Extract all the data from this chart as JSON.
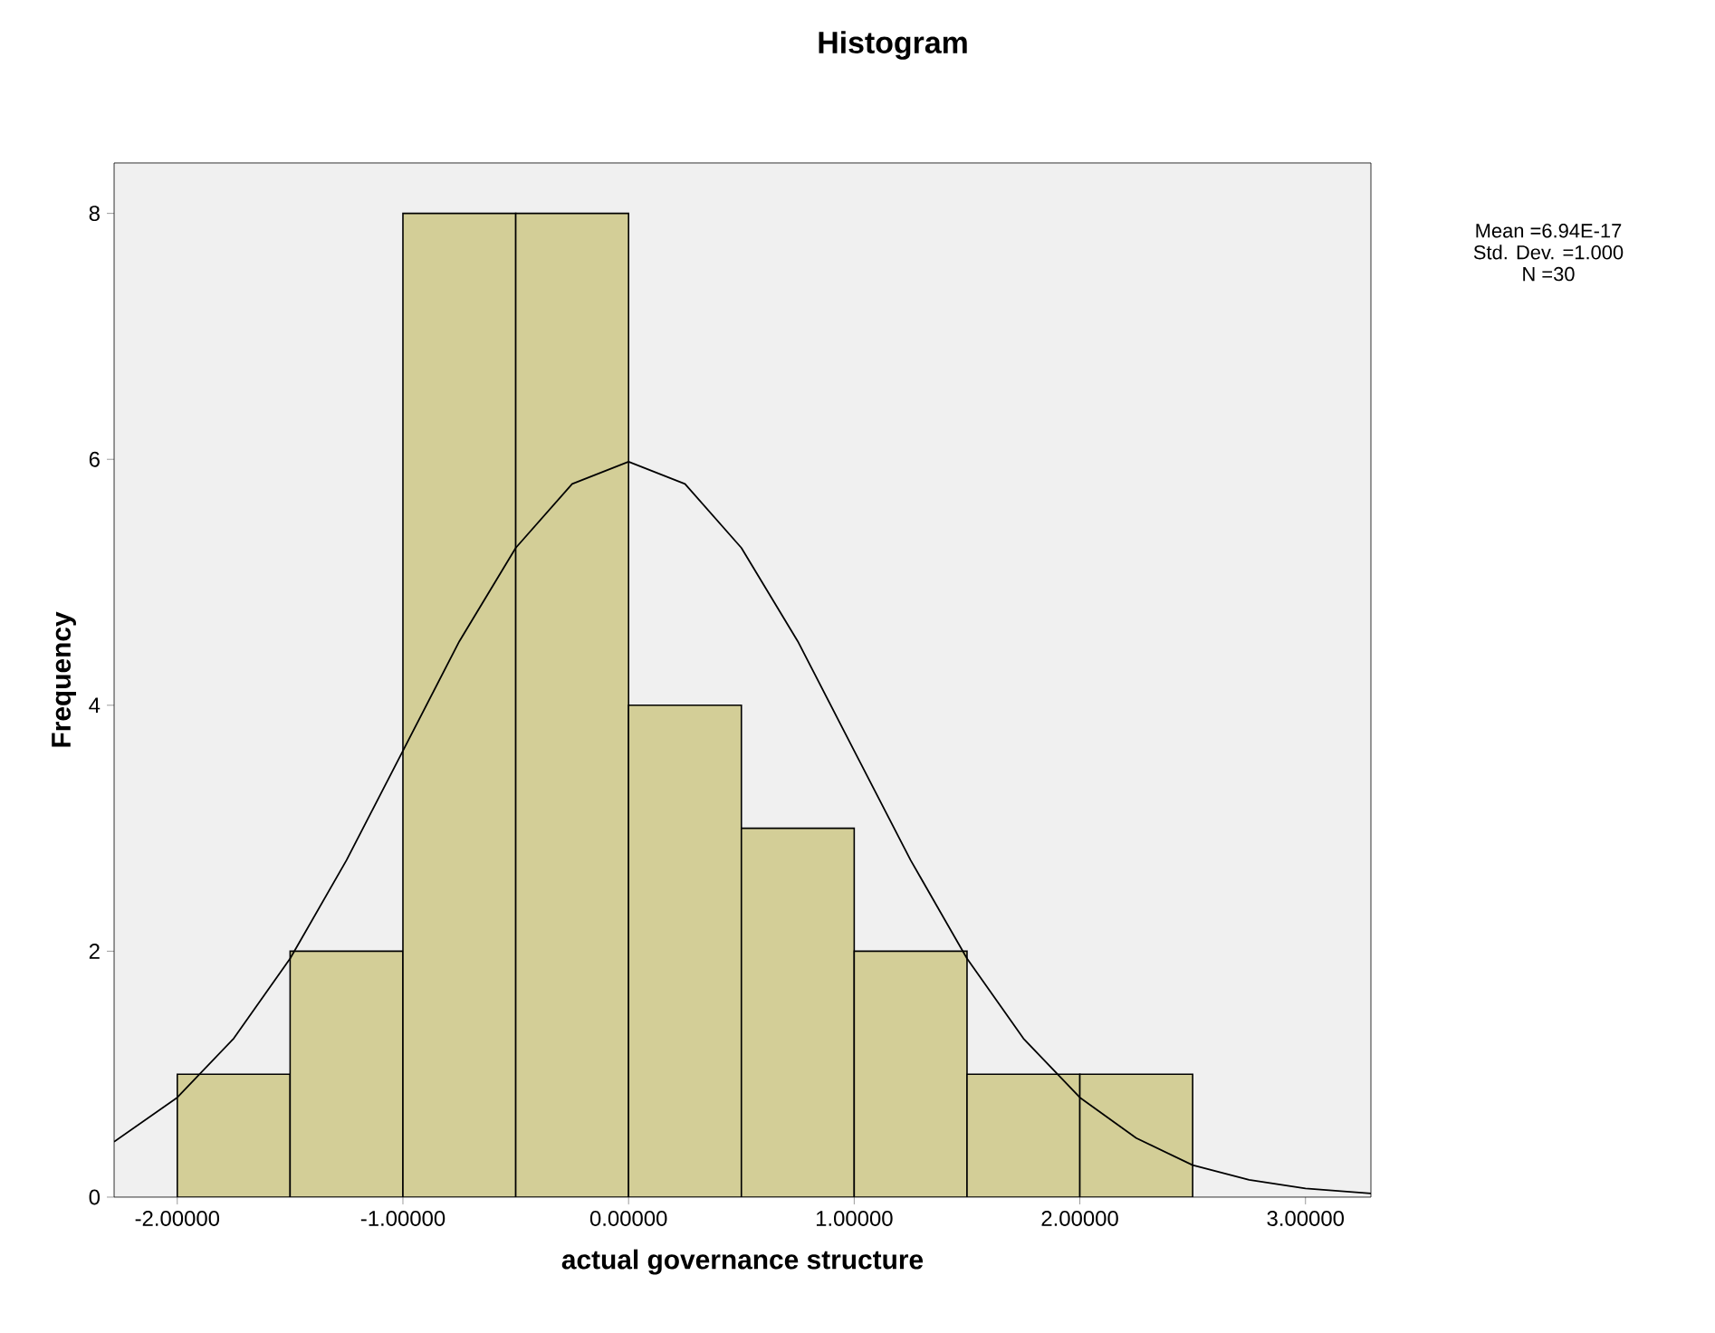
{
  "chart_data": {
    "type": "histogram",
    "title": "Histogram",
    "xlabel": "actual governance structure",
    "ylabel": "Frequency",
    "bins": [
      -2.0,
      -1.5,
      -1.0,
      -0.5,
      0.0,
      0.5,
      1.0,
      1.5,
      2.0,
      2.5
    ],
    "values": [
      1,
      2,
      8,
      8,
      4,
      3,
      2,
      1,
      1
    ],
    "color": "#d3ce97",
    "series": [
      {
        "type": "line",
        "color": "#000000",
        "x": [
          -2.28,
          -2.0,
          -1.75,
          -1.5,
          -1.25,
          -1.0,
          -0.75,
          -0.5,
          -0.25,
          0.0,
          0.25,
          0.5,
          0.75,
          1.0,
          1.25,
          1.5,
          1.75,
          2.0,
          2.25,
          2.5,
          2.75,
          3.0,
          3.29
        ],
        "values": [
          0.45,
          0.81,
          1.29,
          1.94,
          2.74,
          3.63,
          4.52,
          5.28,
          5.8,
          5.98,
          5.8,
          5.28,
          4.52,
          3.63,
          2.74,
          1.94,
          1.29,
          0.81,
          0.48,
          0.26,
          0.14,
          0.07,
          0.03
        ]
      }
    ],
    "xlim": [
      -2.28,
      3.29
    ],
    "ylim": [
      0,
      8.41
    ],
    "xticks": [
      {
        "value": -2,
        "label": "-2.00000"
      },
      {
        "value": -1,
        "label": "-1.00000"
      },
      {
        "value": 0,
        "label": "0.00000"
      },
      {
        "value": 1,
        "label": "1.00000"
      },
      {
        "value": 2,
        "label": "2.00000"
      },
      {
        "value": 3,
        "label": "3.00000"
      }
    ],
    "yticks": [
      0,
      2,
      4,
      6,
      8
    ],
    "annotations": [
      "Mean =6.94E-17",
      "Std. Dev. =1.000",
      "N =30"
    ]
  }
}
